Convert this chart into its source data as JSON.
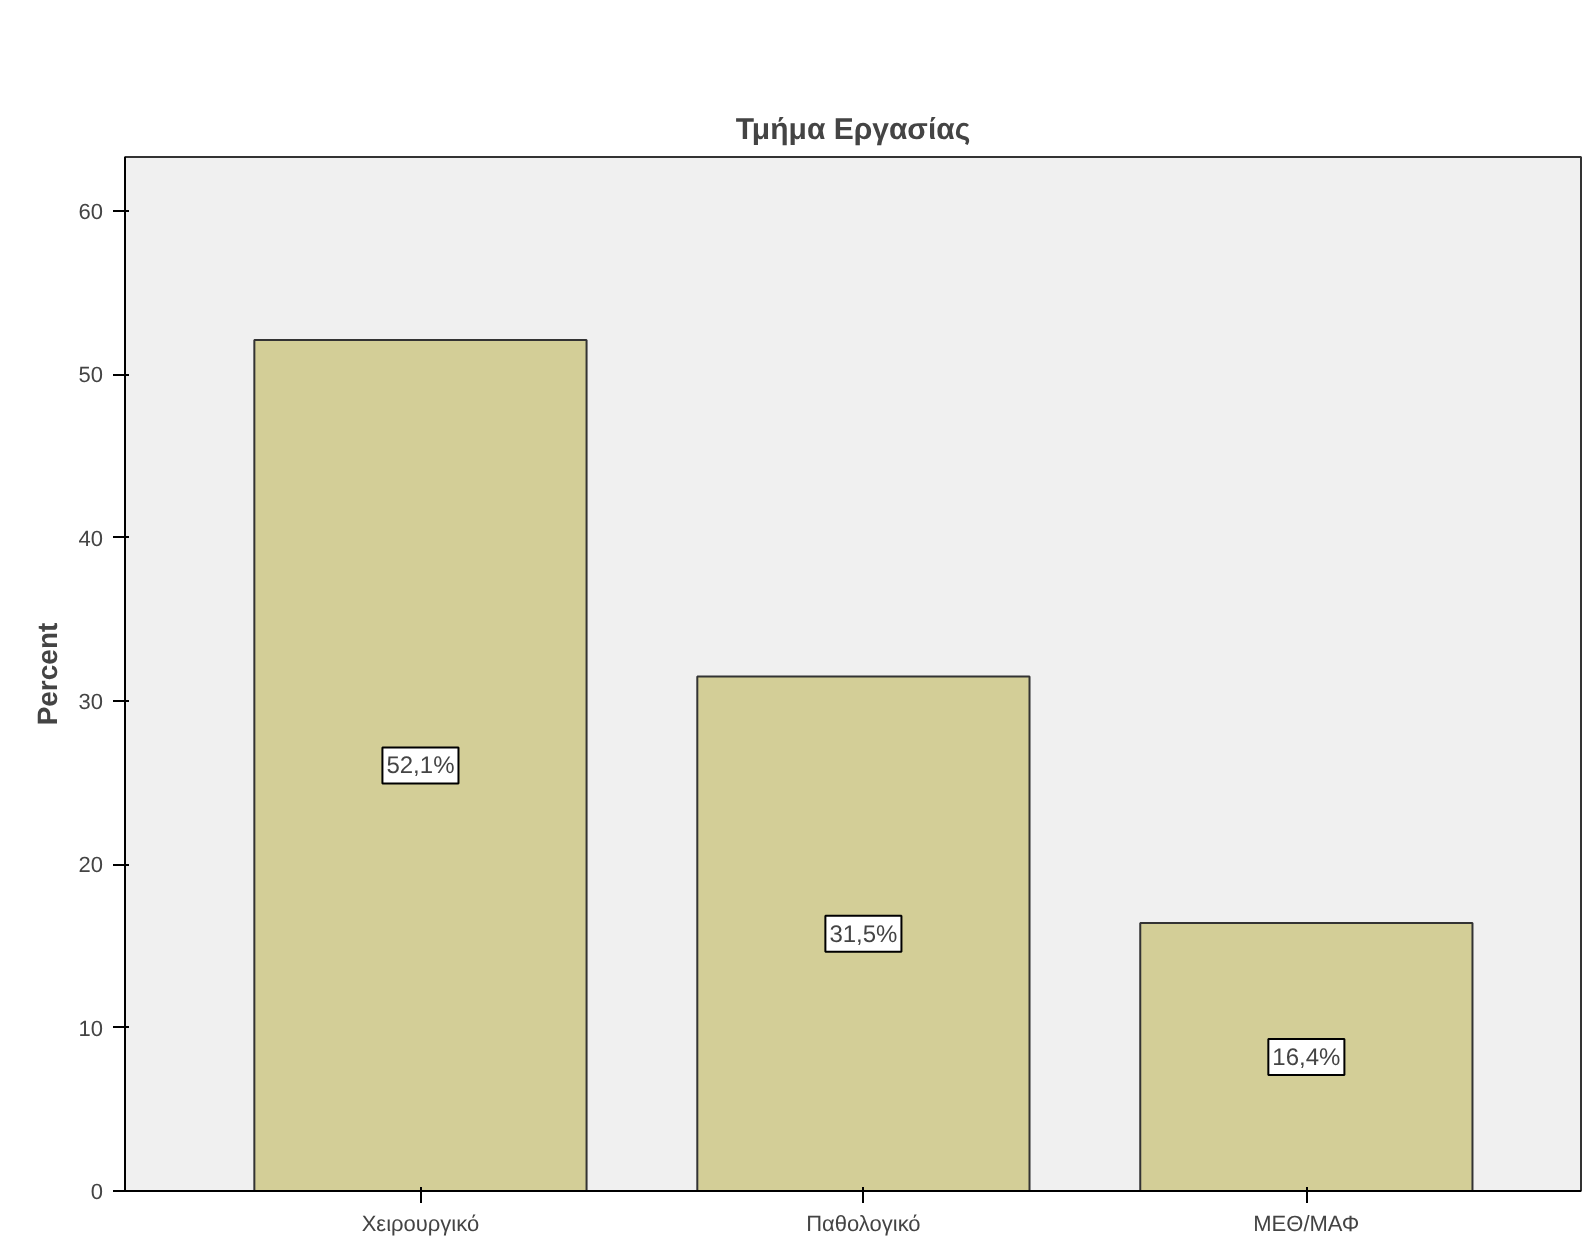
{
  "chart_data": {
    "type": "bar",
    "title": "Τμήμα Εργασίας",
    "ylabel": "Percent",
    "categories": [
      "Χειρουργικό",
      "Παθολογικό",
      "ΜΕΘ/ΜΑΦ"
    ],
    "values": [
      52.1,
      31.5,
      16.4
    ],
    "value_labels": [
      "52,1%",
      "31,5%",
      "16,4%"
    ],
    "color": "#d3ce97",
    "ylim": [
      0,
      63.3
    ],
    "yticks": [
      0,
      10,
      20,
      30,
      40,
      50,
      60
    ],
    "grid": false
  }
}
